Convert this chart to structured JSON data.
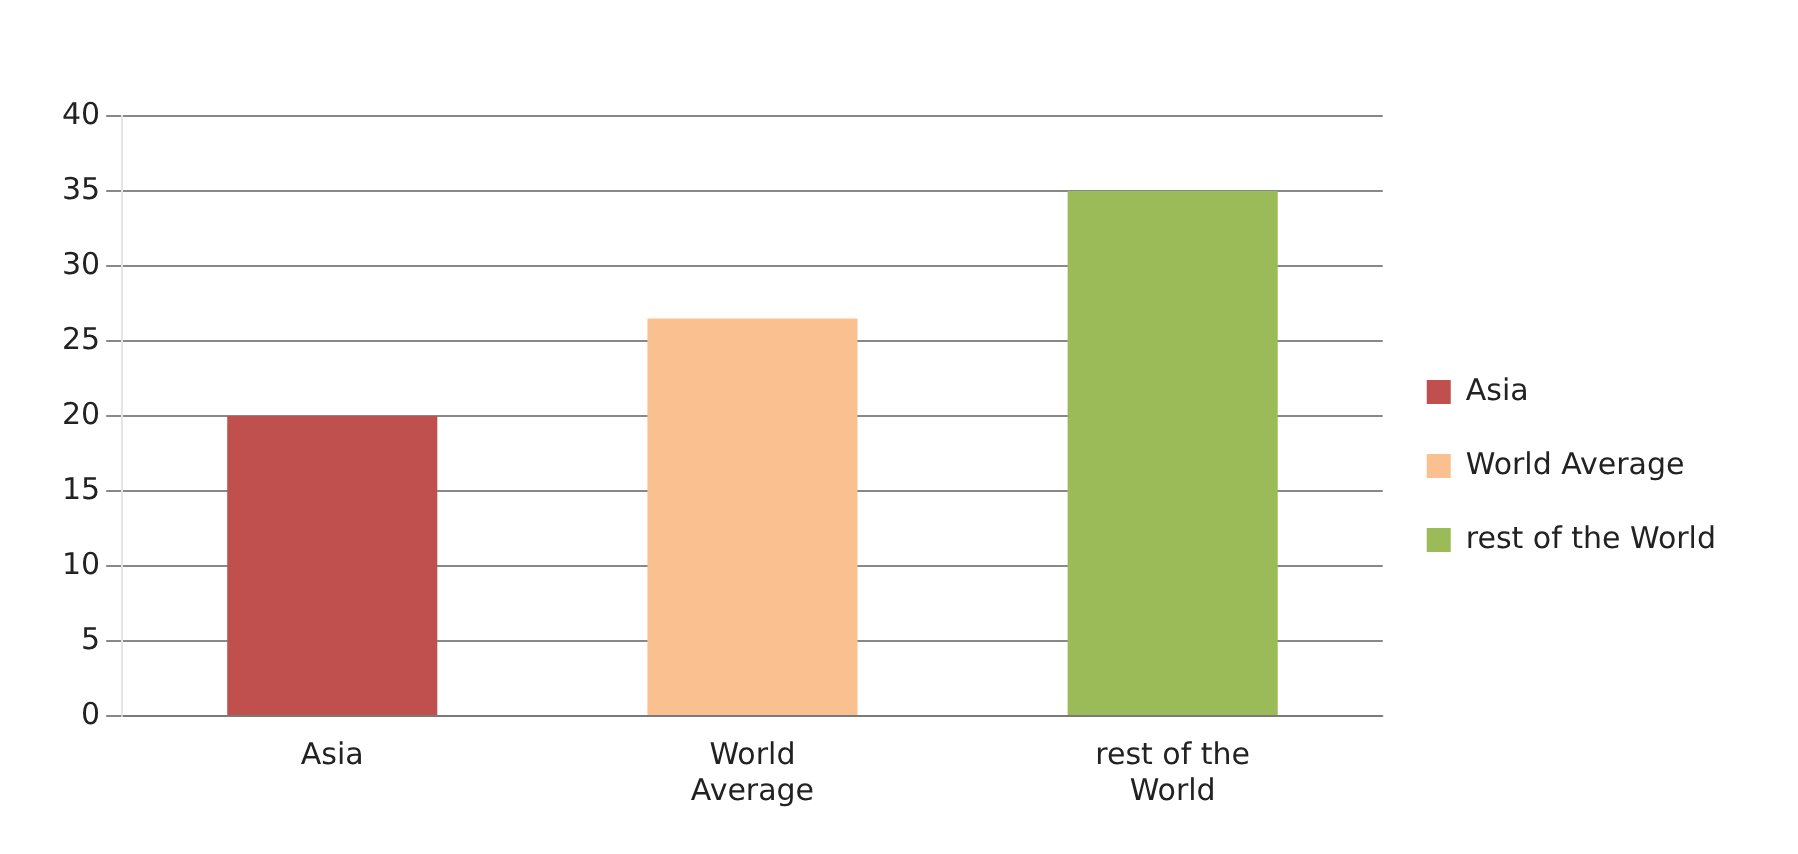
{
  "chart_data": {
    "type": "bar",
    "categories": [
      "Asia",
      "World Average",
      "rest of the World"
    ],
    "series": [
      {
        "name": "Asia",
        "color": "#c0504d",
        "values": [
          20,
          null,
          null
        ]
      },
      {
        "name": "World Average",
        "color": "#fac090",
        "values": [
          null,
          26.5,
          null
        ]
      },
      {
        "name": "rest of the World",
        "color": "#9bbb59",
        "values": [
          null,
          null,
          35
        ]
      }
    ],
    "ylim": [
      0,
      40
    ],
    "yticks": [
      0,
      5,
      10,
      15,
      20,
      25,
      30,
      35,
      40
    ],
    "grid": "y",
    "legend": "right"
  }
}
